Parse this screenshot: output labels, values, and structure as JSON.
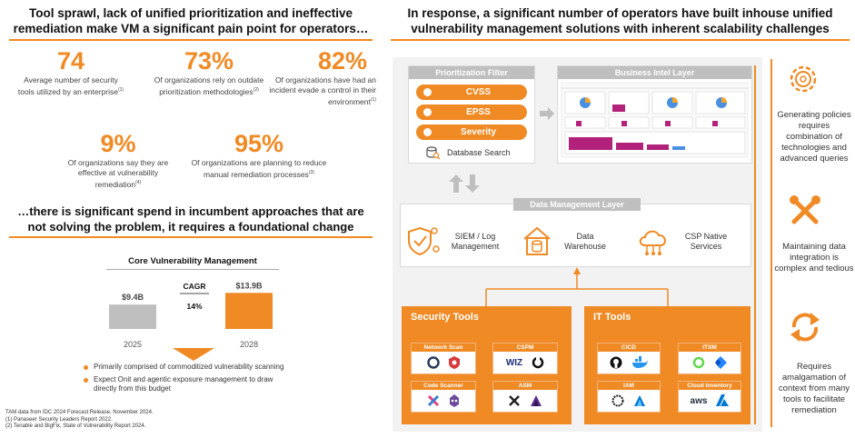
{
  "left": {
    "header": "Tool sprawl, lack of unified prioritization and ineffective remediation make VM a significant pain point for operators…",
    "stats": [
      {
        "value": "74",
        "label": "Average number of security tools utilized by an enterprise",
        "ref": "(1)"
      },
      {
        "value": "73%",
        "label": "Of organizations rely on outdate prioritization methodologies",
        "ref": "(2)"
      },
      {
        "value": "82%",
        "label": "Of organizations have had an incident evade a control in their environment",
        "ref": "(1)"
      },
      {
        "value": "9%",
        "label": "Of organizations say they are effective at vulnerability remediation",
        "ref": "(4)"
      },
      {
        "value": "95%",
        "label": "Of organizations are planning to reduce manual remediation processes",
        "ref": "(3)"
      }
    ],
    "subheader": "…there is significant spend in  incumbent approaches that are not solving the problem, it requires a foundational change",
    "chart_title": "Core Vulnerability Management",
    "bullets": [
      "Primarily comprised of commoditized vulnerability scanning",
      "Expect Onit and agentic exposure management to draw directly from this budget"
    ],
    "footnotes": [
      "TAM data from IDC 2024 Forecast Release, November 2024.",
      "(1) Panaseer Security Leaders Report 2022.",
      "(2) Tenable and BigFix, State of Vulnerability Report 2024."
    ]
  },
  "chart_data": {
    "type": "bar",
    "title": "Core Vulnerability Management",
    "categories": [
      "2025",
      "2028"
    ],
    "values": [
      9.4,
      13.9
    ],
    "value_labels": [
      "$9.4B",
      "$13.9B"
    ],
    "unit": "$B",
    "colors": [
      "#bfbfbf",
      "#f08a24"
    ],
    "cagr_label": "CAGR",
    "cagr_value": "14%",
    "ylim": [
      0,
      14
    ]
  },
  "right": {
    "header": "In response, a significant number of operators have built inhouse unified vulnerability management solutions with inherent scalability challenges",
    "prioritization": {
      "title": "Prioritization Filter",
      "pills": [
        "CVSS",
        "EPSS",
        "Severity"
      ],
      "search": "Database Search"
    },
    "bi": {
      "title": "Business Intel Layer"
    },
    "dml": {
      "title": "Data Management Layer",
      "items": [
        "SIEM / Log Management",
        "Data Warehouse",
        "CSP Native Services"
      ]
    },
    "security_tools": {
      "title": "Security Tools",
      "tiles": [
        "Network Scan",
        "CSPM",
        "Code Scanner",
        "ASM"
      ],
      "wiz": "WIZ"
    },
    "it_tools": {
      "title": "IT Tools",
      "tiles": [
        "CICD",
        "ITSM",
        "IAM",
        "Cloud Inventory"
      ],
      "aws": "aws"
    },
    "challenges": [
      "Generating policies requires combination of technologies and advanced queries",
      "Maintaining data integration is complex and tedious",
      "Requires amalgamation of context from many tools to facilitate remediation"
    ]
  }
}
